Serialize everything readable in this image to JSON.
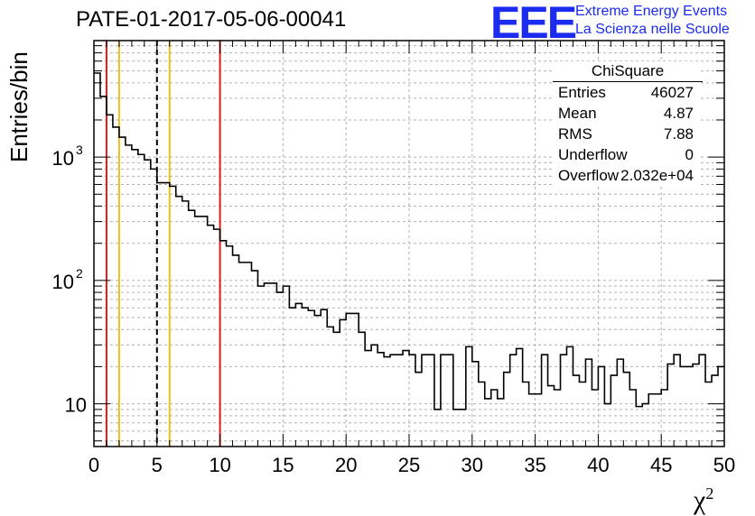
{
  "chart_data": {
    "type": "histogram",
    "title": "PATE-01-2017-05-06-00041",
    "xlabel": "χ",
    "xlabel_sup": "2",
    "ylabel": "Entries/bin",
    "xlim": [
      0,
      50
    ],
    "ylim": [
      4.5,
      8800
    ],
    "yscale": "log",
    "grid": true,
    "bin_width": 0.5,
    "x_ticks": [
      "0",
      "5",
      "10",
      "15",
      "20",
      "25",
      "30",
      "35",
      "40",
      "45",
      "50"
    ],
    "y_ticks": [
      {
        "value": 10,
        "label": "10"
      },
      {
        "value": 100,
        "label": "10",
        "sup": "2"
      },
      {
        "value": 1000,
        "label": "10",
        "sup": "3"
      }
    ],
    "values": [
      4800,
      3100,
      2200,
      1750,
      1450,
      1250,
      1150,
      1050,
      950,
      800,
      620,
      620,
      580,
      480,
      440,
      370,
      330,
      330,
      280,
      260,
      210,
      190,
      160,
      140,
      140,
      120,
      90,
      95,
      95,
      80,
      90,
      60,
      65,
      60,
      57,
      52,
      58,
      42,
      38,
      48,
      54,
      54,
      38,
      27,
      30,
      26,
      24,
      25,
      25,
      27,
      25,
      18,
      25,
      25,
      9,
      25,
      25,
      9,
      9,
      29,
      22,
      15,
      11,
      13,
      11,
      18,
      25,
      28,
      15,
      12,
      12,
      25,
      14,
      13,
      25,
      29,
      17,
      15,
      23,
      13,
      20,
      10,
      17,
      23,
      18,
      13,
      9.5,
      10,
      12,
      12,
      13,
      21,
      25,
      20,
      20,
      21,
      25,
      15,
      17,
      20
    ],
    "vlines": [
      {
        "x": 1,
        "color": "#e81c1c",
        "style": "solid"
      },
      {
        "x": 2,
        "color": "#f0c020",
        "style": "solid"
      },
      {
        "x": 5,
        "color": "#000000",
        "style": "dashed"
      },
      {
        "x": 6,
        "color": "#f0c020",
        "style": "solid"
      },
      {
        "x": 10,
        "color": "#e81c1c",
        "style": "solid"
      }
    ]
  },
  "stats_box": {
    "title": "ChiSquare",
    "rows": [
      {
        "key": "Entries",
        "value": "46027"
      },
      {
        "key": "Mean",
        "value": "4.87"
      },
      {
        "key": "RMS",
        "value": "7.88"
      },
      {
        "key": "Underflow",
        "value": "0"
      },
      {
        "key": "Overflow",
        "value": "2.032e+04"
      }
    ]
  },
  "logo": {
    "mark": "EEE",
    "line1": "Extreme Energy Events",
    "line2": "La Scienza nelle Scuole",
    "color": "#1c2bf0"
  }
}
